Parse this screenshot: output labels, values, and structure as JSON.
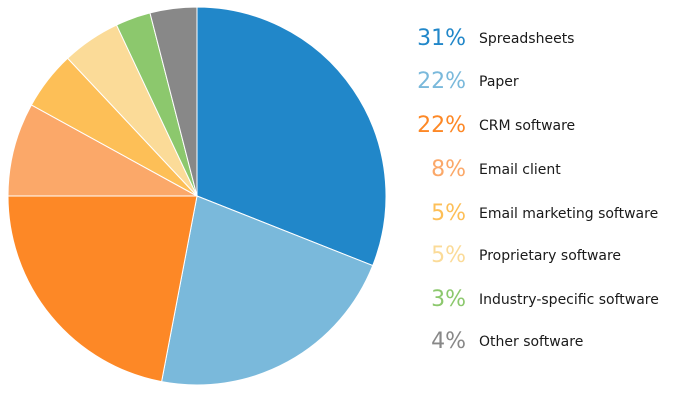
{
  "chart_data": {
    "type": "pie",
    "start_angle_deg": 0,
    "direction": "clockwise",
    "slices": [
      {
        "label": "Spreadsheets",
        "value": 31,
        "display": "31%",
        "color": "#2187c9"
      },
      {
        "label": "Paper",
        "value": 22,
        "display": "22%",
        "color": "#7ab9db"
      },
      {
        "label": "CRM software",
        "value": 22,
        "display": "22%",
        "color": "#fd8826"
      },
      {
        "label": "Email client",
        "value": 8,
        "display": "8%",
        "color": "#fba869"
      },
      {
        "label": "Email marketing software",
        "value": 5,
        "display": "5%",
        "color": "#fdbf57"
      },
      {
        "label": "Proprietary software",
        "value": 5,
        "display": "5%",
        "color": "#fbdb98"
      },
      {
        "label": "Industry-specific software",
        "value": 3,
        "display": "3%",
        "color": "#8cc86d"
      },
      {
        "label": "Other software",
        "value": 4,
        "display": "4%",
        "color": "#888888"
      }
    ],
    "legend_placement": "right"
  }
}
